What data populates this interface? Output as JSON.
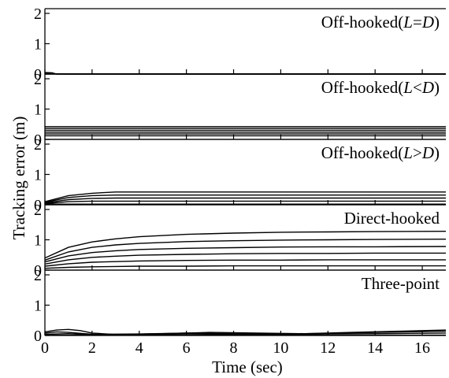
{
  "chart_data": {
    "type": "line",
    "xlabel": "Time (sec)",
    "ylabel": "Tracking error (m)",
    "xlim": [
      0,
      17
    ],
    "x_ticks": [
      "0",
      "2",
      "4",
      "6",
      "8",
      "10",
      "12",
      "14",
      "16"
    ],
    "y_ticks": [
      "0",
      "1",
      "2"
    ],
    "grid": false,
    "panels": [
      {
        "title_prefix": "Off-hooked(",
        "var_a": "L",
        "relation": "=",
        "var_b": "D",
        "title_suffix": ")",
        "ylim": [
          0,
          2
        ],
        "series": [
          {
            "x": [
              0,
              0.3,
              0.5,
              17
            ],
            "y": [
              0.05,
              0.04,
              0.0,
              0.0
            ]
          },
          {
            "x": [
              0,
              0.3,
              0.5,
              17
            ],
            "y": [
              0.03,
              0.02,
              0.0,
              0.0
            ]
          },
          {
            "x": [
              0,
              17
            ],
            "y": [
              0.0,
              0.0
            ]
          }
        ]
      },
      {
        "title_prefix": "Off-hooked(",
        "var_a": "L",
        "relation": "<",
        "var_b": "D",
        "title_suffix": ")",
        "ylim": [
          0,
          2
        ],
        "series": [
          {
            "x": [
              0,
              17
            ],
            "y": [
              0.42,
              0.42
            ]
          },
          {
            "x": [
              0,
              17
            ],
            "y": [
              0.36,
              0.36
            ]
          },
          {
            "x": [
              0,
              17
            ],
            "y": [
              0.3,
              0.3
            ]
          },
          {
            "x": [
              0,
              17
            ],
            "y": [
              0.24,
              0.24
            ]
          },
          {
            "x": [
              0,
              17
            ],
            "y": [
              0.18,
              0.18
            ]
          },
          {
            "x": [
              0,
              17
            ],
            "y": [
              0.12,
              0.12
            ]
          }
        ]
      },
      {
        "title_prefix": "Off-hooked(",
        "var_a": "L",
        "relation": ">",
        "var_b": "D",
        "title_suffix": ")",
        "ylim": [
          0,
          2
        ],
        "series": [
          {
            "x": [
              0,
              1,
              2,
              3,
              17
            ],
            "y": [
              0.1,
              0.3,
              0.38,
              0.42,
              0.42
            ]
          },
          {
            "x": [
              0,
              1,
              2,
              3,
              17
            ],
            "y": [
              0.08,
              0.24,
              0.3,
              0.32,
              0.32
            ]
          },
          {
            "x": [
              0,
              1,
              2,
              3,
              17
            ],
            "y": [
              0.06,
              0.17,
              0.21,
              0.22,
              0.22
            ]
          },
          {
            "x": [
              0,
              1,
              2,
              3,
              17
            ],
            "y": [
              0.04,
              0.1,
              0.12,
              0.12,
              0.12
            ]
          },
          {
            "x": [
              0,
              17
            ],
            "y": [
              0.02,
              0.02
            ]
          }
        ]
      },
      {
        "title": "Direct-hooked",
        "ylim": [
          0,
          2
        ],
        "series": [
          {
            "x": [
              0,
              1,
              2,
              3,
              4,
              6,
              8,
              10,
              12,
              14,
              17
            ],
            "y": [
              0.4,
              0.75,
              0.93,
              1.03,
              1.1,
              1.18,
              1.22,
              1.25,
              1.26,
              1.27,
              1.28
            ]
          },
          {
            "x": [
              0,
              1,
              2,
              3,
              4,
              6,
              8,
              10,
              12,
              14,
              17
            ],
            "y": [
              0.33,
              0.6,
              0.75,
              0.83,
              0.88,
              0.94,
              0.97,
              0.99,
              1.0,
              1.01,
              1.02
            ]
          },
          {
            "x": [
              0,
              1,
              2,
              3,
              4,
              6,
              8,
              10,
              12,
              14,
              17
            ],
            "y": [
              0.27,
              0.47,
              0.58,
              0.64,
              0.68,
              0.72,
              0.74,
              0.76,
              0.77,
              0.77,
              0.78
            ]
          },
          {
            "x": [
              0,
              1,
              2,
              3,
              4,
              6,
              8,
              10,
              12,
              14,
              17
            ],
            "y": [
              0.2,
              0.34,
              0.42,
              0.46,
              0.49,
              0.52,
              0.54,
              0.55,
              0.55,
              0.56,
              0.56
            ]
          },
          {
            "x": [
              0,
              1,
              2,
              3,
              4,
              6,
              8,
              10,
              12,
              14,
              17
            ],
            "y": [
              0.13,
              0.21,
              0.26,
              0.28,
              0.3,
              0.32,
              0.33,
              0.33,
              0.34,
              0.34,
              0.34
            ]
          },
          {
            "x": [
              0,
              1,
              2,
              3,
              4,
              6,
              8,
              10,
              12,
              14,
              17
            ],
            "y": [
              0.06,
              0.09,
              0.11,
              0.12,
              0.13,
              0.13,
              0.14,
              0.14,
              0.14,
              0.14,
              0.14
            ]
          }
        ]
      },
      {
        "title": "Three-point",
        "ylim": [
          0,
          2
        ],
        "series": [
          {
            "x": [
              0,
              0.5,
              1,
              1.5,
              2,
              3,
              5,
              7,
              9,
              11,
              13,
              15,
              17
            ],
            "y": [
              0.12,
              0.18,
              0.2,
              0.16,
              0.08,
              0.03,
              0.06,
              0.1,
              0.08,
              0.06,
              0.1,
              0.14,
              0.18
            ]
          },
          {
            "x": [
              0,
              0.5,
              1,
              2,
              4,
              6,
              8,
              10,
              12,
              14,
              17
            ],
            "y": [
              0.08,
              0.12,
              0.1,
              0.04,
              0.05,
              0.08,
              0.06,
              0.05,
              0.07,
              0.1,
              0.14
            ]
          },
          {
            "x": [
              0,
              1,
              2,
              4,
              6,
              8,
              10,
              12,
              14,
              17
            ],
            "y": [
              0.04,
              0.06,
              0.02,
              0.03,
              0.05,
              0.04,
              0.03,
              0.05,
              0.06,
              0.08
            ]
          },
          {
            "x": [
              0,
              17
            ],
            "y": [
              0.01,
              0.01
            ]
          }
        ]
      }
    ]
  }
}
